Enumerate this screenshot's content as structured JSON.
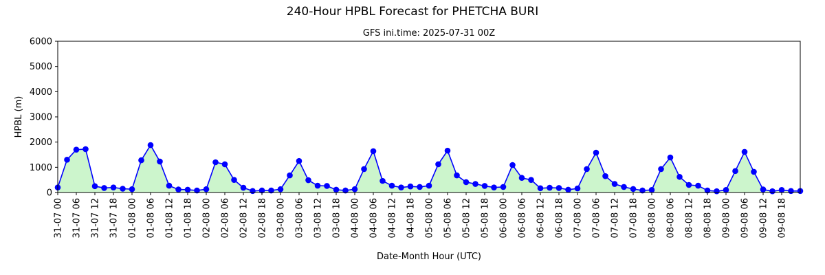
{
  "chart_data": {
    "type": "area",
    "title": "240-Hour HPBL Forecast for PHETCHA BURI",
    "subtitle": "GFS ini.time: 2025-07-31 00Z",
    "xlabel": "Date-Month Hour (UTC)",
    "ylabel": "HPBL (m)",
    "ylim": [
      0,
      6000
    ],
    "yticks": [
      0,
      1000,
      2000,
      3000,
      4000,
      5000,
      6000
    ],
    "x_step_hours": 3,
    "x": [
      "31-07 00",
      "31-07 03",
      "31-07 06",
      "31-07 09",
      "31-07 12",
      "31-07 15",
      "31-07 18",
      "31-07 21",
      "01-08 00",
      "01-08 03",
      "01-08 06",
      "01-08 09",
      "01-08 12",
      "01-08 15",
      "01-08 18",
      "01-08 21",
      "02-08 00",
      "02-08 03",
      "02-08 06",
      "02-08 09",
      "02-08 12",
      "02-08 15",
      "02-08 18",
      "02-08 21",
      "03-08 00",
      "03-08 03",
      "03-08 06",
      "03-08 09",
      "03-08 12",
      "03-08 15",
      "03-08 18",
      "03-08 21",
      "04-08 00",
      "04-08 03",
      "04-08 06",
      "04-08 09",
      "04-08 12",
      "04-08 15",
      "04-08 18",
      "04-08 21",
      "05-08 00",
      "05-08 03",
      "05-08 06",
      "05-08 09",
      "05-08 12",
      "05-08 15",
      "05-08 18",
      "05-08 21",
      "06-08 00",
      "06-08 03",
      "06-08 06",
      "06-08 09",
      "06-08 12",
      "06-08 15",
      "06-08 18",
      "06-08 21",
      "07-08 00",
      "07-08 03",
      "07-08 06",
      "07-08 09",
      "07-08 12",
      "07-08 15",
      "07-08 18",
      "07-08 21",
      "08-08 00",
      "08-08 03",
      "08-08 06",
      "08-08 09",
      "08-08 12",
      "08-08 15",
      "08-08 18",
      "08-08 21",
      "09-08 00",
      "09-08 03",
      "09-08 06",
      "09-08 09",
      "09-08 12",
      "09-08 15",
      "09-08 18",
      "09-08 21",
      "10-08 00"
    ],
    "tick_labels": [
      "31-07 00",
      "31-07 06",
      "31-07 12",
      "31-07 18",
      "01-08 00",
      "01-08 06",
      "01-08 12",
      "01-08 18",
      "02-08 00",
      "02-08 06",
      "02-08 12",
      "02-08 18",
      "03-08 00",
      "03-08 06",
      "03-08 12",
      "03-08 18",
      "04-08 00",
      "04-08 06",
      "04-08 12",
      "04-08 18",
      "05-08 00",
      "05-08 06",
      "05-08 12",
      "05-08 18",
      "06-08 00",
      "06-08 06",
      "06-08 12",
      "06-08 18",
      "07-08 00",
      "07-08 06",
      "07-08 12",
      "07-08 18",
      "08-08 00",
      "08-08 06",
      "08-08 12",
      "08-08 18",
      "09-08 00",
      "09-08 06",
      "09-08 12",
      "09-08 18"
    ],
    "series": [
      {
        "values": [
          200,
          1300,
          1700,
          1720,
          250,
          180,
          200,
          150,
          130,
          1280,
          1880,
          1230,
          270,
          120,
          110,
          80,
          130,
          1200,
          1120,
          500,
          190,
          60,
          80,
          80,
          130,
          680,
          1250,
          490,
          270,
          260,
          110,
          80,
          130,
          930,
          1640,
          460,
          270,
          200,
          240,
          220,
          270,
          1120,
          1660,
          680,
          410,
          340,
          260,
          200,
          220,
          1090,
          580,
          500,
          170,
          190,
          180,
          110,
          160,
          930,
          1580,
          650,
          340,
          220,
          140,
          80,
          100,
          930,
          1390,
          620,
          300,
          270,
          80,
          50,
          100,
          850,
          1610,
          820,
          120,
          50,
          100,
          60,
          60
        ],
        "line_color": "#0000ff",
        "fill_color": "#ccf5cc"
      }
    ],
    "grid": false,
    "legend": "none"
  }
}
